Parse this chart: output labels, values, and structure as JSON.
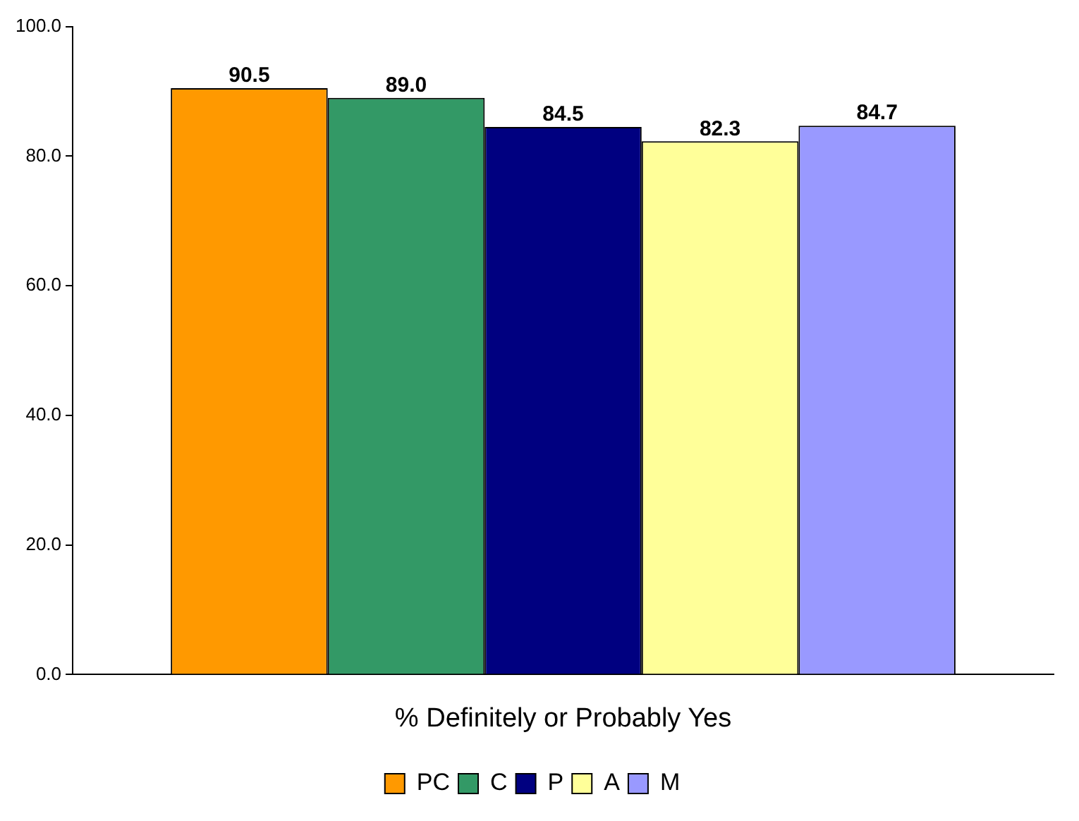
{
  "chart_data": {
    "type": "bar",
    "categories": [
      "% Definitely or Probably Yes"
    ],
    "series": [
      {
        "name": "PC",
        "color": "#ff9900",
        "values": [
          90.5
        ],
        "value_labels": [
          "90.5"
        ]
      },
      {
        "name": "C",
        "color": "#339966",
        "values": [
          89.0
        ],
        "value_labels": [
          "89.0"
        ]
      },
      {
        "name": "P",
        "color": "#000080",
        "values": [
          84.5
        ],
        "value_labels": [
          "84.5"
        ]
      },
      {
        "name": "A",
        "color": "#ffff99",
        "values": [
          82.3
        ],
        "value_labels": [
          "82.3"
        ]
      },
      {
        "name": "M",
        "color": "#9999ff",
        "values": [
          84.7
        ],
        "value_labels": [
          "84.7"
        ]
      }
    ],
    "ylim": [
      0,
      100
    ],
    "yticks": [
      {
        "value": 0,
        "label": "0.0"
      },
      {
        "value": 20,
        "label": "20.0"
      },
      {
        "value": 40,
        "label": "40.0"
      },
      {
        "value": 60,
        "label": "60.0"
      },
      {
        "value": 80,
        "label": "80.0"
      },
      {
        "value": 100,
        "label": "100.0"
      }
    ],
    "grid": false,
    "legend": "bottom"
  }
}
